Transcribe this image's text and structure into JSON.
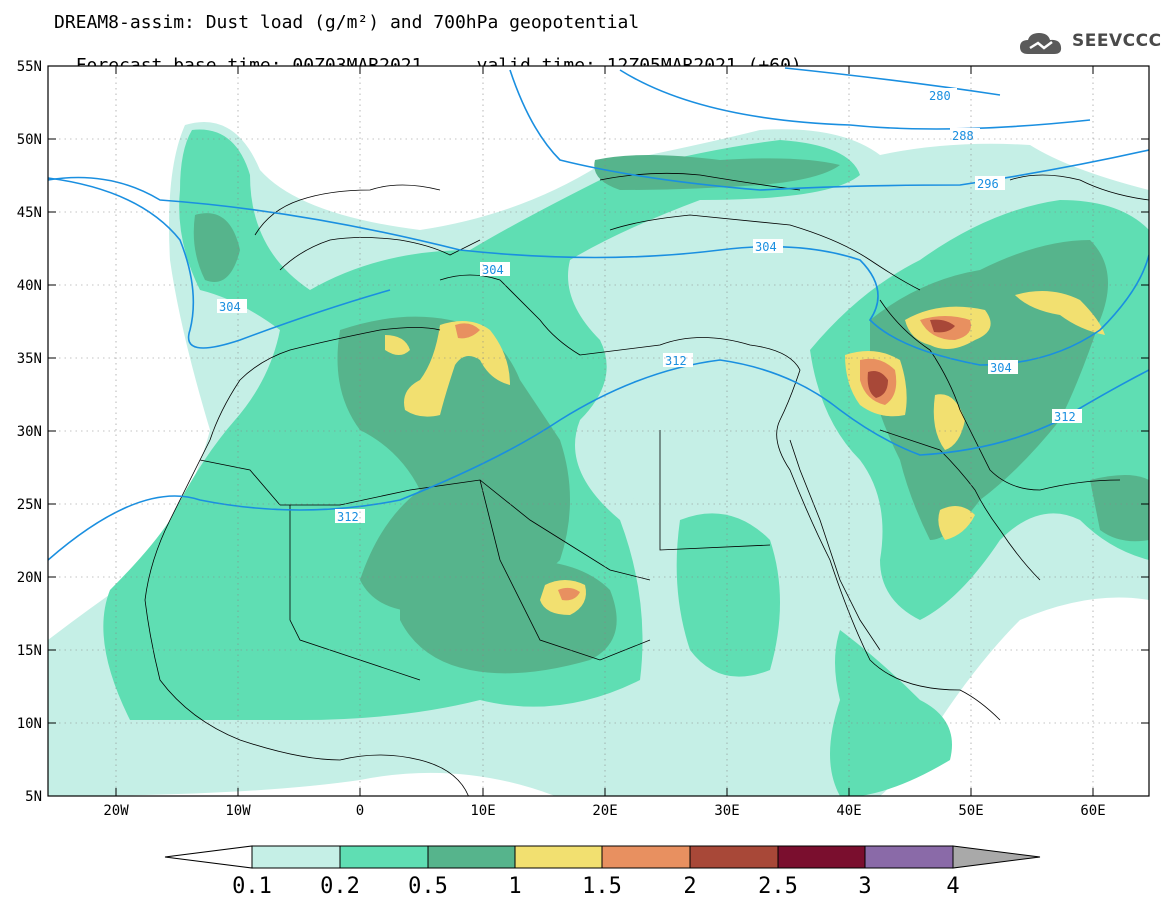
{
  "title": {
    "line1": "DREAM8-assim: Dust load (g/m²) and 700hPa geopotential",
    "line2_base": "Forecast base time: 00Z03MAR2021",
    "line2_valid": "valid time: 12Z05MAR2021 (+60)"
  },
  "logo": {
    "text": "SEEVCCC",
    "icon": "cloud-icon"
  },
  "axes": {
    "lat_labels": [
      "55N",
      "50N",
      "45N",
      "40N",
      "35N",
      "30N",
      "25N",
      "20N",
      "15N",
      "10N",
      "5N"
    ],
    "lon_labels": [
      "20W",
      "10W",
      "0",
      "10E",
      "20E",
      "30E",
      "40E",
      "50E",
      "60E"
    ]
  },
  "contours": {
    "color": "#1a8fe0",
    "labels": [
      "280",
      "288",
      "296",
      "304",
      "304",
      "304",
      "304",
      "312",
      "312",
      "312"
    ]
  },
  "colorbar": {
    "ticks": [
      "0.1",
      "0.2",
      "0.5",
      "1",
      "1.5",
      "2",
      "2.5",
      "3",
      "4"
    ],
    "colors": [
      "#ffffff",
      "#c5efe6",
      "#5fdeb3",
      "#56b48c",
      "#f2e070",
      "#e89060",
      "#a84838",
      "#7a0e2e",
      "#8a6aa8",
      "#a9a9a9"
    ]
  },
  "dust_colors": {
    "light": "#c5efe6",
    "mid": "#5fdeb3",
    "dark": "#56b48c",
    "yellow": "#f2e070",
    "orange": "#e89060",
    "brown": "#a84838"
  }
}
